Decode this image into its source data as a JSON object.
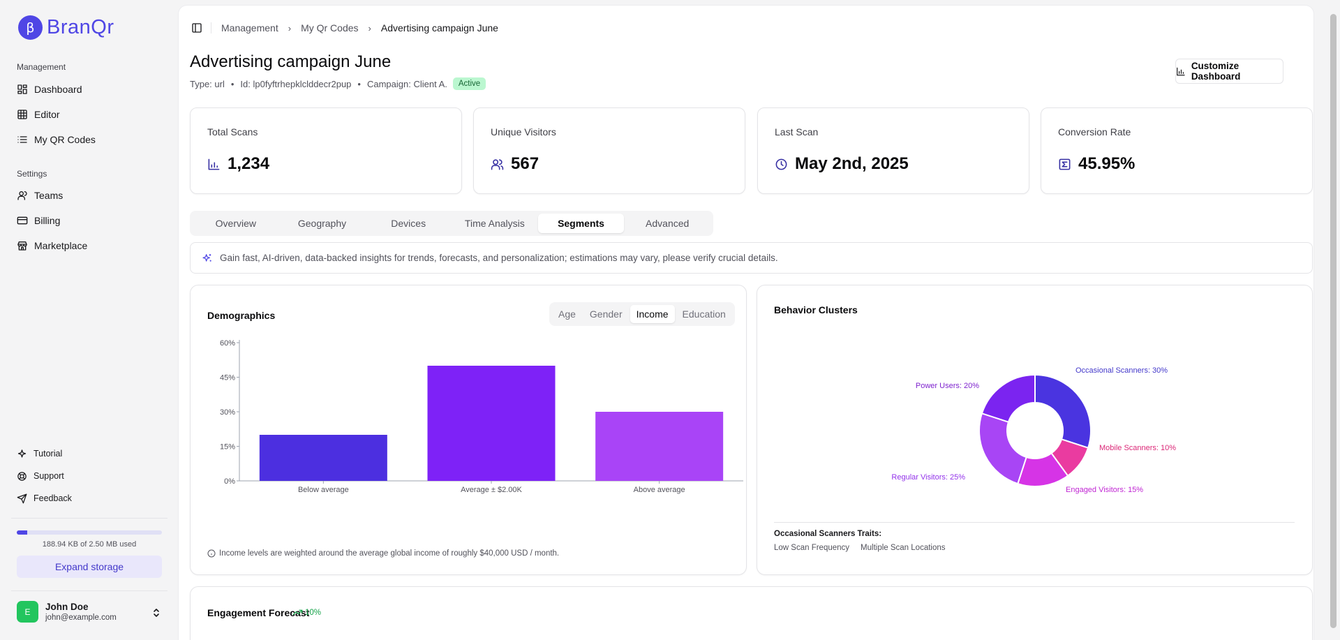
{
  "app": {
    "brand_letter": "β",
    "brand_name": "BranQr"
  },
  "sidebar": {
    "section_management": "Management",
    "management_items": [
      {
        "label": "Dashboard",
        "icon": "layout-grid-icon"
      },
      {
        "label": "Editor",
        "icon": "grid-icon"
      },
      {
        "label": "My QR Codes",
        "icon": "list-icon"
      }
    ],
    "section_settings": "Settings",
    "settings_items": [
      {
        "label": "Teams",
        "icon": "users-icon"
      },
      {
        "label": "Billing",
        "icon": "credit-card-icon"
      },
      {
        "label": "Marketplace",
        "icon": "store-icon"
      }
    ],
    "footer_items": [
      {
        "label": "Tutorial",
        "icon": "sparkle-icon"
      },
      {
        "label": "Support",
        "icon": "lifebuoy-icon"
      },
      {
        "label": "Feedback",
        "icon": "send-icon"
      }
    ],
    "storage": {
      "text": "188.94 KB of 2.50 MB used",
      "fraction": 0.0738
    },
    "expand_label": "Expand storage",
    "user": {
      "initial": "E",
      "name": "John Doe",
      "email": "john@example.com"
    }
  },
  "breadcrumb": [
    "Management",
    "My Qr Codes",
    "Advertising campaign June"
  ],
  "header": {
    "title": "Advertising campaign June",
    "type": "Type: url",
    "id": "Id: lp0fyftrhepklclddecr2pup",
    "campaign": "Campaign: Client A.",
    "status": "Active",
    "customize_label": "Customize Dashboard"
  },
  "stats": [
    {
      "label": "Total Scans",
      "value": "1,234",
      "icon": "bar-chart-icon"
    },
    {
      "label": "Unique Visitors",
      "value": "567",
      "icon": "users-icon"
    },
    {
      "label": "Last Scan",
      "value": "May 2nd, 2025",
      "icon": "clock-icon"
    },
    {
      "label": "Conversion Rate",
      "value": "45.95%",
      "icon": "sigma-icon"
    }
  ],
  "tabs": [
    "Overview",
    "Geography",
    "Devices",
    "Time Analysis",
    "Segments",
    "Advanced"
  ],
  "active_tab": "Segments",
  "ai_banner": "Gain fast, AI-driven, data-backed insights for trends, forecasts, and personalization; estimations may vary, please verify crucial details.",
  "demographics": {
    "title": "Demographics",
    "segments": [
      "Age",
      "Gender",
      "Income",
      "Education"
    ],
    "active_segment": "Income",
    "note": "Income levels are weighted around the average global income of roughly $40,000 USD / month."
  },
  "behavior": {
    "title": "Behavior Clusters",
    "traits_title": "Occasional Scanners Traits:",
    "traits": [
      "Low Scan Frequency",
      "Multiple Scan Locations"
    ]
  },
  "forecast": {
    "title": "Engagement Forecast",
    "change": "10%"
  },
  "chart_data": [
    {
      "type": "bar",
      "categories": [
        "Below average",
        "Average ± $2.00K",
        "Above average"
      ],
      "values": [
        20,
        50,
        30
      ],
      "yticks": [
        "0%",
        "15%",
        "30%",
        "45%",
        "60%"
      ],
      "ylim": [
        0,
        60
      ],
      "colors": [
        "#4c2fe0",
        "#7e22f7",
        "#a944f7"
      ]
    },
    {
      "type": "pie",
      "donut": true,
      "slices": [
        {
          "label": "Occasional Scanners: 30%",
          "value": 30,
          "color": "#4a34e0"
        },
        {
          "label": "Mobile Scanners: 10%",
          "value": 10,
          "color": "#ea3ba0"
        },
        {
          "label": "Engaged Visitors: 15%",
          "value": 15,
          "color": "#d634e6"
        },
        {
          "label": "Regular Visitors: 25%",
          "value": 25,
          "color": "#a845f5"
        },
        {
          "label": "Power Users: 20%",
          "value": 20,
          "color": "#7b24f0"
        }
      ],
      "label_colors": [
        "#4338ca",
        "#db2777",
        "#c026d3",
        "#9333ea",
        "#7e22ce"
      ]
    }
  ]
}
